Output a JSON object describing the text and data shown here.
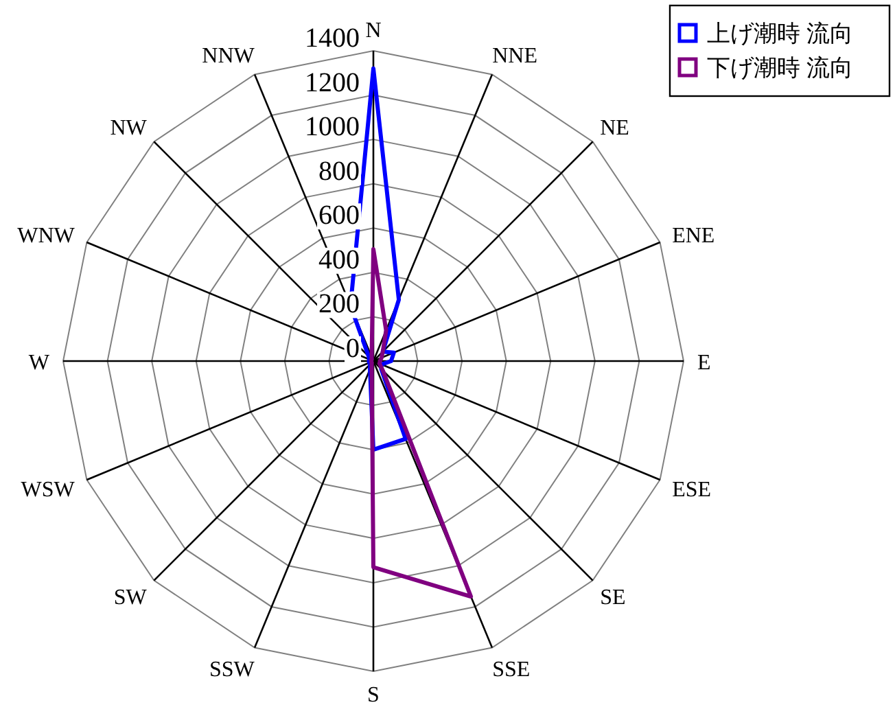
{
  "chart_data": {
    "type": "radar",
    "categories": [
      "N",
      "NNE",
      "NE",
      "ENE",
      "E",
      "ESE",
      "SE",
      "SSE",
      "S",
      "SSW",
      "SW",
      "WSW",
      "W",
      "WNW",
      "NW",
      "NNW"
    ],
    "series": [
      {
        "name": "上げ潮時 流向",
        "color": "#0000ff",
        "values": [
          1320,
          300,
          60,
          100,
          80,
          40,
          50,
          380,
          400,
          40,
          20,
          20,
          20,
          20,
          30,
          270
        ]
      },
      {
        "name": "下げ潮時 流向",
        "color": "#800080",
        "values": [
          505,
          150,
          60,
          40,
          30,
          30,
          60,
          1150,
          930,
          20,
          10,
          10,
          10,
          10,
          10,
          20
        ]
      }
    ],
    "ylim": [
      0,
      1400
    ],
    "yticks": [
      0,
      200,
      400,
      600,
      800,
      1000,
      1200,
      1400
    ],
    "grid": true,
    "legend": "top right",
    "marker": "none",
    "line_style": "solid"
  }
}
